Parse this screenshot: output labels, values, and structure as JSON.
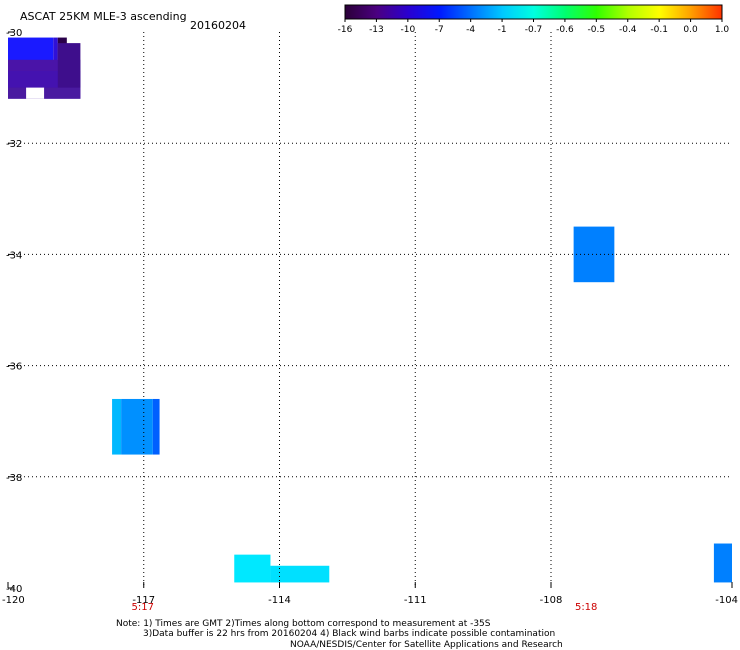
{
  "header": {
    "title": "ASCAT 25KM MLE-3 ascending",
    "date": "20160204"
  },
  "colorbar": {
    "tick_labels": [
      "-16",
      "-13",
      "-10",
      "-7",
      "-4",
      "-1",
      "-0.7",
      "-0.6",
      "-0.5",
      "-0.4",
      "-0.1",
      "0.0",
      "1.0"
    ],
    "colors": [
      "#2a0038",
      "#4b0080",
      "#2a00d0",
      "#0018ff",
      "#0070ff",
      "#00c8ff",
      "#00ffe0",
      "#00ff70",
      "#30ff00",
      "#b0ff00",
      "#ffff00",
      "#ffa000",
      "#ff3000"
    ]
  },
  "time_labels": [
    "5:17",
    "5:18"
  ],
  "notes": [
    "Note: 1) Times are GMT 2)Times along bottom correspond to measurement at -35S",
    "3)Data buffer is 22 hrs from 20160204 4) Black wind barbs indicate possible contamination",
    "NOAA/NESDIS/Center for Satellite Applications and Research"
  ],
  "chart_data": {
    "type": "heatmap",
    "xlim": [
      -120,
      -104
    ],
    "ylim": [
      -40,
      -30
    ],
    "x_ticks": [
      -120,
      -117,
      -114,
      -111,
      -108,
      -104
    ],
    "x_tick_labels": [
      "-120",
      "-117",
      "-114",
      "-111",
      "-108",
      "-104"
    ],
    "y_ticks": [
      -30,
      -32,
      -34,
      -36,
      -38,
      -40
    ],
    "y_tick_labels": [
      "-30",
      "-32",
      "-34",
      "-36",
      "-38",
      "-40"
    ],
    "time_marks": [
      {
        "lon": -117.0,
        "label": "5:17"
      },
      {
        "lon": -107.2,
        "label": "5:18"
      }
    ],
    "grid": true,
    "cells": [
      {
        "lon0": -120.0,
        "lon1": -119.0,
        "lat0": -30.8,
        "lat1": -30.1,
        "color": "#1a1aff"
      },
      {
        "lon0": -119.0,
        "lon1": -118.9,
        "lat0": -30.8,
        "lat1": -30.1,
        "color": "#3010d8"
      },
      {
        "lon0": -118.9,
        "lon1": -118.7,
        "lat0": -30.5,
        "lat1": -30.1,
        "color": "#2a004a"
      },
      {
        "lon0": -120.0,
        "lon1": -119.0,
        "lat0": -31.1,
        "lat1": -30.8,
        "color": "#3c10c0"
      },
      {
        "lon0": -120.0,
        "lon1": -118.4,
        "lat0": -31.2,
        "lat1": -30.5,
        "color": "#4a14a8"
      },
      {
        "lon0": -120.0,
        "lon1": -118.4,
        "lat0": -31.0,
        "lat1": -30.7,
        "color": "#4412b0"
      },
      {
        "lon0": -120.0,
        "lon1": -119.6,
        "lat0": -31.2,
        "lat1": -31.0,
        "color": "#4a1aa0"
      },
      {
        "lon0": -119.6,
        "lon1": -119.2,
        "lat0": -31.2,
        "lat1": -31.0,
        "color": "#ffffff"
      },
      {
        "lon0": -119.2,
        "lon1": -118.4,
        "lat0": -31.2,
        "lat1": -31.0,
        "color": "#4a1aa0"
      },
      {
        "lon0": -118.9,
        "lon1": -118.4,
        "lat0": -31.0,
        "lat1": -30.2,
        "color": "#3e0e8c"
      },
      {
        "lon0": -117.7,
        "lon1": -117.5,
        "lat0": -37.6,
        "lat1": -36.6,
        "color": "#00b8ff"
      },
      {
        "lon0": -117.5,
        "lon1": -116.8,
        "lat0": -37.6,
        "lat1": -36.6,
        "color": "#0090ff"
      },
      {
        "lon0": -116.8,
        "lon1": -116.65,
        "lat0": -37.6,
        "lat1": -36.6,
        "color": "#0060ff"
      },
      {
        "lon0": -115.0,
        "lon1": -114.2,
        "lat0": -39.9,
        "lat1": -39.4,
        "color": "#00e8ff"
      },
      {
        "lon0": -114.2,
        "lon1": -112.9,
        "lat0": -39.9,
        "lat1": -39.6,
        "color": "#00e0ff"
      },
      {
        "lon0": -107.5,
        "lon1": -106.6,
        "lat0": -34.5,
        "lat1": -33.5,
        "color": "#0080ff"
      },
      {
        "lon0": -104.4,
        "lon1": -104.0,
        "lat0": -39.9,
        "lat1": -39.2,
        "color": "#0080ff"
      }
    ]
  }
}
